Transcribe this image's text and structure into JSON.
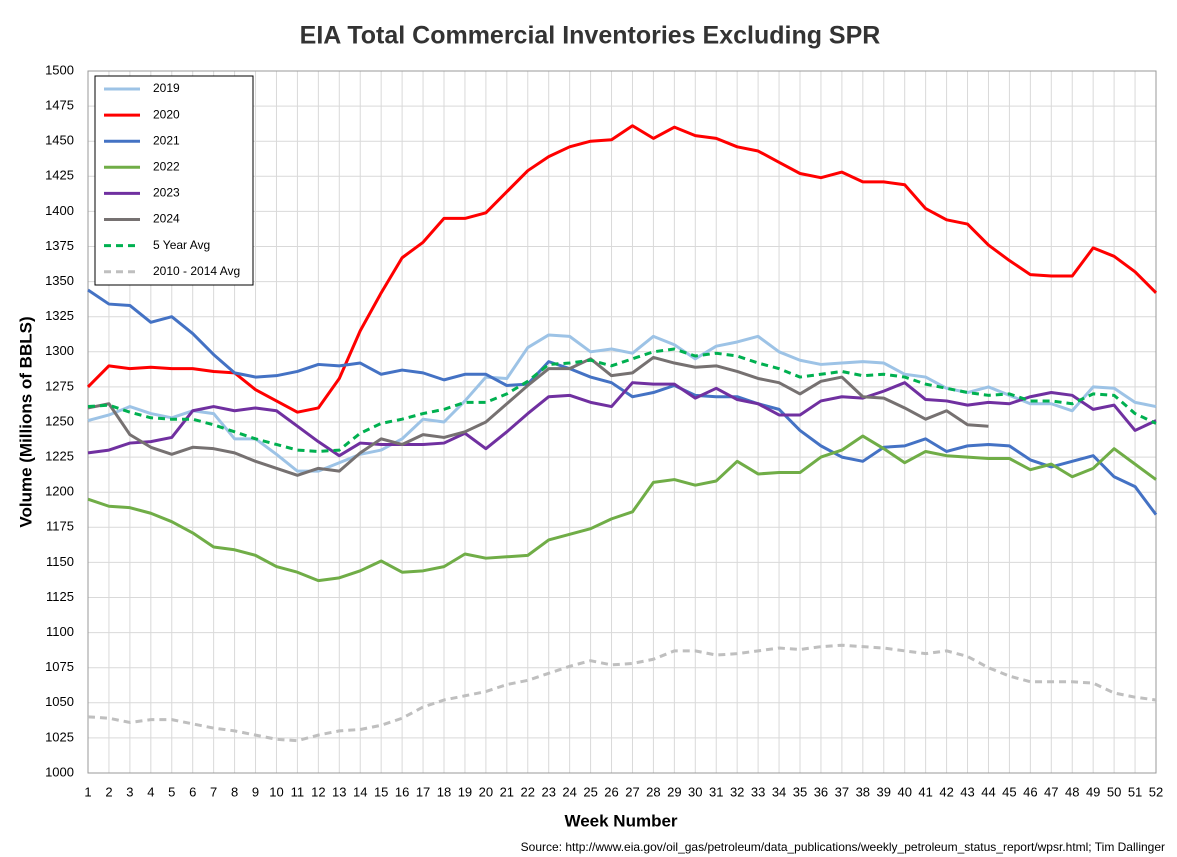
{
  "chart_data": {
    "type": "line",
    "title": "EIA Total Commercial Inventories Excluding SPR",
    "x_label": "Week Number",
    "y_label": "Volume (Millions of BBLS)",
    "source": "Source: http://www.eia.gov/oil_gas/petroleum/data_publications/weekly_petroleum_status_report/wpsr.html; Tim Dallinger",
    "x": [
      1,
      2,
      3,
      4,
      5,
      6,
      7,
      8,
      9,
      10,
      11,
      12,
      13,
      14,
      15,
      16,
      17,
      18,
      19,
      20,
      21,
      22,
      23,
      24,
      25,
      26,
      27,
      28,
      29,
      30,
      31,
      32,
      33,
      34,
      35,
      36,
      37,
      38,
      39,
      40,
      41,
      42,
      43,
      44,
      45,
      46,
      47,
      48,
      49,
      50,
      51,
      52
    ],
    "xlim": [
      1,
      52
    ],
    "xticks": [
      1,
      2,
      3,
      4,
      5,
      6,
      7,
      8,
      9,
      10,
      11,
      12,
      13,
      14,
      15,
      16,
      17,
      18,
      19,
      20,
      21,
      22,
      23,
      24,
      25,
      26,
      27,
      28,
      29,
      30,
      31,
      32,
      33,
      34,
      35,
      36,
      37,
      38,
      39,
      40,
      41,
      42,
      43,
      44,
      45,
      46,
      47,
      48,
      49,
      50,
      51,
      52
    ],
    "ylim": [
      1000,
      1500
    ],
    "yticks": [
      1000,
      1025,
      1050,
      1075,
      1100,
      1125,
      1150,
      1175,
      1200,
      1225,
      1250,
      1275,
      1300,
      1325,
      1350,
      1375,
      1400,
      1425,
      1450,
      1475,
      1500
    ],
    "grid": true,
    "legend": "top-left",
    "series": [
      {
        "name": "2019",
        "color": "#9dc3e6",
        "dashed": false,
        "values": [
          1251,
          1255,
          1261,
          1256,
          1253,
          1258,
          1256,
          1238,
          1238,
          1227,
          1215,
          1215,
          1221,
          1227,
          1230,
          1238,
          1252,
          1250,
          1265,
          1282,
          1281,
          1303,
          1312,
          1311,
          1300,
          1302,
          1299,
          1311,
          1305,
          1295,
          1304,
          1307,
          1311,
          1300,
          1294,
          1291,
          1292,
          1293,
          1292,
          1284,
          1282,
          1274,
          1271,
          1275,
          1269,
          1263,
          1263,
          1258,
          1275,
          1274,
          1264,
          1261
        ]
      },
      {
        "name": "2020",
        "color": "#ff0000",
        "dashed": false,
        "values": [
          1275,
          1290,
          1288,
          1289,
          1288,
          1288,
          1286,
          1285,
          1273,
          1265,
          1257,
          1260,
          1281,
          1315,
          1342,
          1367,
          1378,
          1395,
          1395,
          1399,
          1414,
          1429,
          1439,
          1446,
          1450,
          1451,
          1461,
          1452,
          1460,
          1454,
          1452,
          1446,
          1443,
          1435,
          1427,
          1424,
          1428,
          1421,
          1421,
          1419,
          1402,
          1394,
          1391,
          1376,
          1365,
          1355,
          1354,
          1354,
          1374,
          1368,
          1357,
          1342
        ]
      },
      {
        "name": "2021",
        "color": "#4472c4",
        "dashed": false,
        "values": [
          1344,
          1334,
          1333,
          1321,
          1325,
          1313,
          1298,
          1285,
          1282,
          1283,
          1286,
          1291,
          1290,
          1292,
          1284,
          1287,
          1285,
          1280,
          1284,
          1284,
          1276,
          1277,
          1293,
          1288,
          1282,
          1278,
          1268,
          1271,
          1276,
          1269,
          1268,
          1268,
          1263,
          1259,
          1244,
          1233,
          1225,
          1222,
          1232,
          1233,
          1238,
          1229,
          1233,
          1234,
          1233,
          1223,
          1218,
          1222,
          1226,
          1211,
          1204,
          1184
        ]
      },
      {
        "name": "2022",
        "color": "#70ad47",
        "dashed": false,
        "values": [
          1195,
          1190,
          1189,
          1185,
          1179,
          1171,
          1161,
          1159,
          1155,
          1147,
          1143,
          1137,
          1139,
          1144,
          1151,
          1143,
          1144,
          1147,
          1156,
          1153,
          1154,
          1155,
          1166,
          1170,
          1174,
          1181,
          1186,
          1207,
          1209,
          1205,
          1208,
          1222,
          1213,
          1214,
          1214,
          1225,
          1230,
          1240,
          1231,
          1221,
          1229,
          1226,
          1225,
          1224,
          1224,
          1216,
          1220,
          1211,
          1217,
          1231,
          1220,
          1209
        ]
      },
      {
        "name": "2023",
        "color": "#7030a0",
        "dashed": false,
        "values": [
          1228,
          1230,
          1235,
          1236,
          1239,
          1258,
          1261,
          1258,
          1260,
          1258,
          1247,
          1236,
          1226,
          1235,
          1234,
          1234,
          1234,
          1235,
          1242,
          1231,
          1243,
          1256,
          1268,
          1269,
          1264,
          1261,
          1278,
          1277,
          1277,
          1267,
          1274,
          1266,
          1263,
          1255,
          1255,
          1265,
          1268,
          1267,
          1272,
          1278,
          1266,
          1265,
          1262,
          1264,
          1263,
          1268,
          1271,
          1269,
          1259,
          1262,
          1244,
          1251
        ]
      },
      {
        "name": "2024",
        "color": "#767171",
        "dashed": false,
        "values": [
          1260,
          1263,
          1241,
          1232,
          1227,
          1232,
          1231,
          1228,
          1222,
          1217,
          1212,
          1217,
          1215,
          1228,
          1238,
          1234,
          1241,
          1239,
          1243,
          1250,
          1263,
          1276,
          1288,
          1288,
          1295,
          1283,
          1285,
          1296,
          1292,
          1289,
          1290,
          1286,
          1281,
          1278,
          1270,
          1279,
          1282,
          1268,
          1267,
          1260,
          1252,
          1258,
          1248,
          1247,
          null,
          null,
          null,
          null,
          null,
          null,
          null,
          null
        ]
      },
      {
        "name": "5 Year Avg",
        "color": "#00b050",
        "dashed": true,
        "values": [
          1261,
          1262,
          1257,
          1253,
          1252,
          1252,
          1248,
          1243,
          1238,
          1234,
          1230,
          1229,
          1230,
          1242,
          1249,
          1252,
          1256,
          1259,
          1264,
          1264,
          1270,
          1279,
          1291,
          1292,
          1294,
          1290,
          1295,
          1300,
          1302,
          1297,
          1299,
          1297,
          1292,
          1288,
          1282,
          1284,
          1286,
          1283,
          1284,
          1282,
          1277,
          1274,
          1271,
          1269,
          1270,
          1265,
          1265,
          1263,
          1270,
          1269,
          1256,
          1249
        ]
      },
      {
        "name": "2010 - 2014 Avg",
        "color": "#bfbfbf",
        "dashed": true,
        "values": [
          1040,
          1039,
          1036,
          1038,
          1038,
          1035,
          1032,
          1030,
          1027,
          1024,
          1023,
          1027,
          1030,
          1031,
          1034,
          1039,
          1047,
          1052,
          1055,
          1058,
          1063,
          1066,
          1071,
          1076,
          1080,
          1077,
          1078,
          1081,
          1087,
          1087,
          1084,
          1085,
          1087,
          1089,
          1088,
          1090,
          1091,
          1090,
          1089,
          1087,
          1085,
          1087,
          1083,
          1075,
          1069,
          1065,
          1065,
          1065,
          1064,
          1057,
          1054,
          1052
        ]
      }
    ]
  }
}
